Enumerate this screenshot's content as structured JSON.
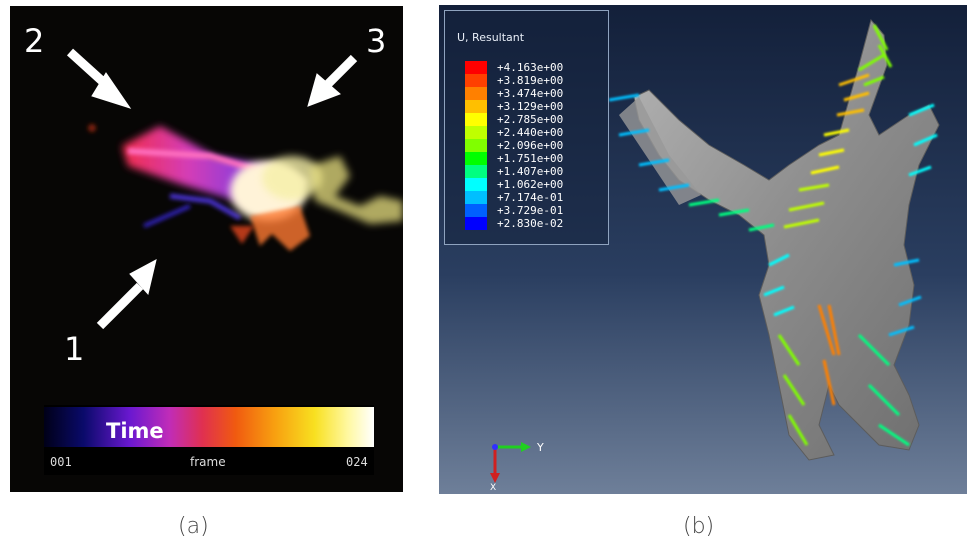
{
  "panel_a": {
    "caption": "(a)",
    "arrow_labels": [
      "1",
      "2",
      "3"
    ],
    "colorbar": {
      "title": "Time",
      "label_left": "001",
      "label_center": "frame",
      "label_right": "024"
    }
  },
  "panel_b": {
    "caption": "(b)",
    "legend": {
      "title": "U, Resultant",
      "entries": [
        {
          "value": "+4.163e+00",
          "color": "#ff0000"
        },
        {
          "value": "+3.819e+00",
          "color": "#ff4000"
        },
        {
          "value": "+3.474e+00",
          "color": "#ff8000"
        },
        {
          "value": "+3.129e+00",
          "color": "#ffbf00"
        },
        {
          "value": "+2.785e+00",
          "color": "#ffff00"
        },
        {
          "value": "+2.440e+00",
          "color": "#bfff00"
        },
        {
          "value": "+2.096e+00",
          "color": "#80ff00"
        },
        {
          "value": "+1.751e+00",
          "color": "#00ff00"
        },
        {
          "value": "+1.407e+00",
          "color": "#00ff80"
        },
        {
          "value": "+1.062e+00",
          "color": "#00ffff"
        },
        {
          "value": "+7.174e-01",
          "color": "#00bfff"
        },
        {
          "value": "+3.729e-01",
          "color": "#0060ff"
        },
        {
          "value": "+2.830e-02",
          "color": "#0000ff"
        }
      ]
    },
    "axes": {
      "y_label": "Y",
      "x_label": "X"
    }
  }
}
